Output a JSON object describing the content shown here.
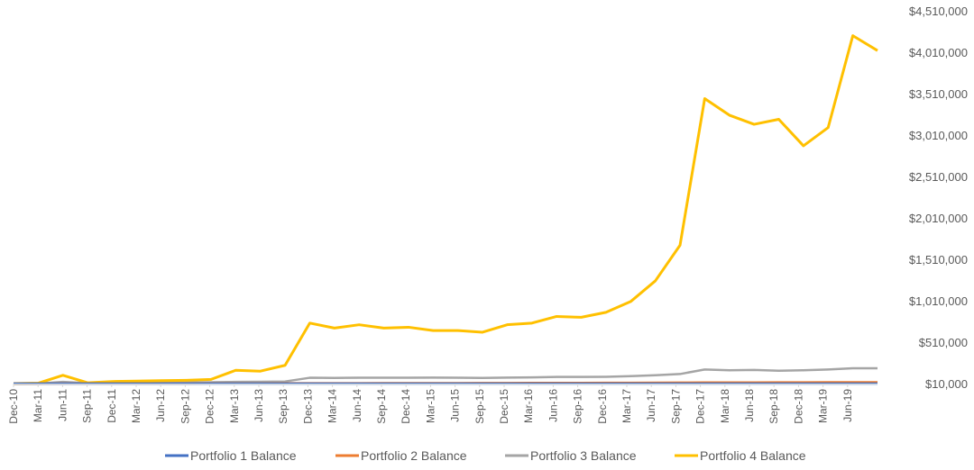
{
  "chart_data": {
    "type": "line",
    "title": "",
    "xlabel": "",
    "ylabel": "",
    "y_axis_position": "right",
    "ylim": [
      10000,
      4510000
    ],
    "y_ticks": [
      10000,
      510000,
      1010000,
      1510000,
      2010000,
      2510000,
      3010000,
      3510000,
      4010000,
      4510000
    ],
    "y_tick_labels": [
      "$10,000",
      "$510,000",
      "$1,010,000",
      "$1,510,000",
      "$2,010,000",
      "$2,510,000",
      "$3,010,000",
      "$3,510,000",
      "$4,010,000",
      "$4,510,000"
    ],
    "x_tick_labels": [
      "Dec-10",
      "Mar-11",
      "Jun-11",
      "Sep-11",
      "Dec-11",
      "Mar-12",
      "Jun-12",
      "Sep-12",
      "Dec-12",
      "Mar-13",
      "Jun-13",
      "Sep-13",
      "Dec-13",
      "Mar-14",
      "Jun-14",
      "Sep-14",
      "Dec-14",
      "Mar-15",
      "Jun-15",
      "Sep-15",
      "Dec-15",
      "Mar-16",
      "Jun-16",
      "Sep-16",
      "Dec-16",
      "Mar-17",
      "Jun-17",
      "Sep-17",
      "Dec-17",
      "Mar-18",
      "Jun-18",
      "Sep-18",
      "Dec-18",
      "Mar-19",
      "Jun-19"
    ],
    "x_start": "Dec-10",
    "x_end": "Sep-19",
    "grid": false,
    "legend_position": "bottom",
    "series": [
      {
        "name": "Portfolio 1 Balance",
        "color": "#4472C4",
        "values": [
          10000,
          10000,
          10000,
          10000,
          10000,
          10000,
          10000,
          10000,
          10000,
          10000,
          10000,
          10000,
          10000,
          10000,
          10000,
          10000,
          10000,
          10000,
          10000,
          10000,
          10000,
          10000,
          10000,
          10000,
          10000,
          10000,
          10000,
          10000,
          10000,
          10000,
          10000,
          10000,
          10000,
          10000,
          10000,
          10000
        ]
      },
      {
        "name": "Portfolio 2 Balance",
        "color": "#ED7D31",
        "values": [
          10000,
          10000,
          11000,
          11000,
          11500,
          11500,
          12000,
          12000,
          12500,
          13000,
          13000,
          13500,
          14000,
          14000,
          14500,
          15000,
          15000,
          15500,
          16000,
          16500,
          17000,
          17500,
          18000,
          18500,
          19000,
          20000,
          21000,
          22000,
          23000,
          23500,
          24000,
          24500,
          25000,
          26000,
          27000,
          27000
        ]
      },
      {
        "name": "Portfolio 3 Balance",
        "color": "#A5A5A5",
        "values": [
          10000,
          12000,
          30000,
          15000,
          20000,
          22000,
          24000,
          25000,
          27000,
          30000,
          32000,
          35000,
          80000,
          78000,
          80000,
          80000,
          80000,
          82000,
          80000,
          78000,
          82000,
          85000,
          90000,
          90000,
          92000,
          100000,
          110000,
          125000,
          180000,
          170000,
          175000,
          165000,
          170000,
          180000,
          195000,
          195000
        ]
      },
      {
        "name": "Portfolio 4 Balance",
        "color": "#FFC000",
        "values": [
          10000,
          15000,
          110000,
          20000,
          35000,
          40000,
          45000,
          50000,
          60000,
          170000,
          160000,
          230000,
          740000,
          680000,
          720000,
          680000,
          690000,
          650000,
          650000,
          630000,
          720000,
          740000,
          820000,
          810000,
          870000,
          1000000,
          1250000,
          1680000,
          3450000,
          3250000,
          3140000,
          3200000,
          2880000,
          3100000,
          4210000,
          4030000
        ]
      }
    ]
  }
}
